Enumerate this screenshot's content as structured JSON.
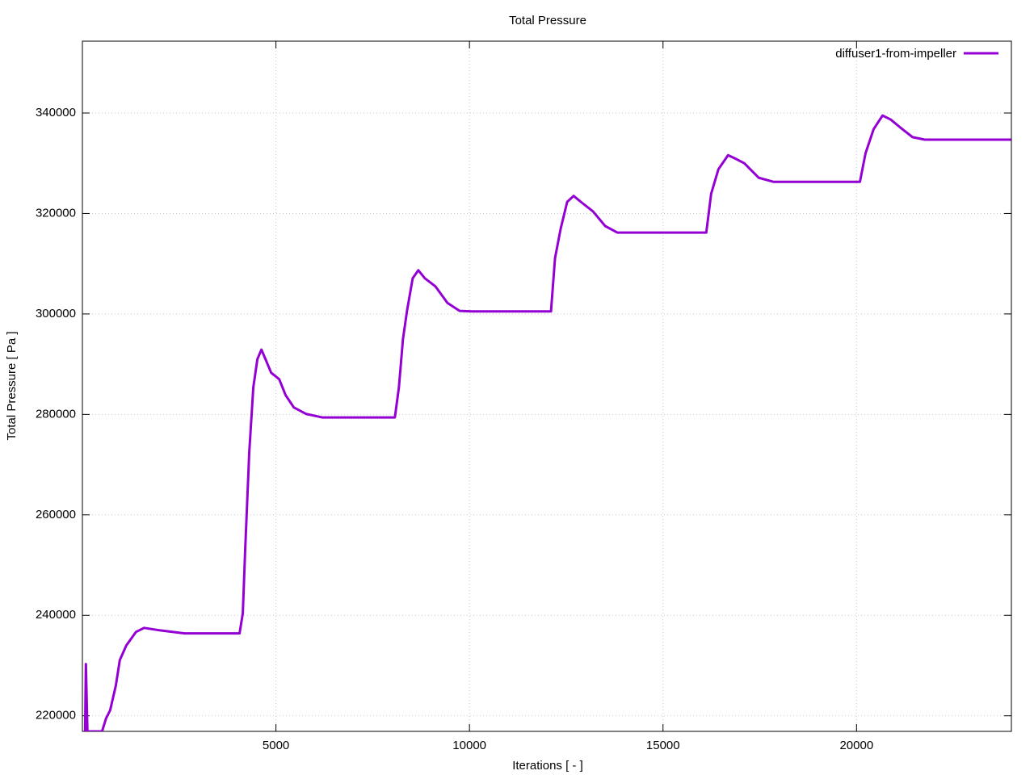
{
  "chart_data": {
    "type": "line",
    "title": "Total Pressure",
    "x_label": "Iterations [ - ]",
    "y_label": "Total Pressure [ Pa ]",
    "x": [
      70,
      90,
      130,
      508,
      612,
      717,
      863,
      967,
      1134,
      1385,
      1594,
      2012,
      2639,
      4060,
      4144,
      4207,
      4311,
      4416,
      4521,
      4625,
      4730,
      4876,
      5085,
      5252,
      5461,
      5775,
      6193,
      8073,
      8177,
      8282,
      8386,
      8533,
      8679,
      8846,
      9118,
      9431,
      9745,
      10058,
      12106,
      12210,
      12357,
      12524,
      12691,
      12879,
      13192,
      13506,
      13819,
      16118,
      16243,
      16431,
      16681,
      16849,
      17099,
      17475,
      17851,
      20087,
      20233,
      20442,
      20672,
      20881,
      21132,
      21445,
      21759,
      23993
    ],
    "series": [
      {
        "name": "diffuser1-from-impeller",
        "color": "#9400d3",
        "values": [
          216900,
          230300,
          216900,
          216900,
          219500,
          221100,
          226000,
          231100,
          234000,
          236700,
          237500,
          237000,
          236400,
          236400,
          240400,
          253300,
          272500,
          285400,
          291000,
          292900,
          291000,
          288300,
          287000,
          283800,
          281400,
          280100,
          279400,
          279400,
          285400,
          295000,
          300600,
          307100,
          308700,
          307100,
          305500,
          302200,
          300600,
          300500,
          300500,
          311100,
          317000,
          322300,
          323500,
          322300,
          320400,
          317500,
          316200,
          316200,
          323900,
          328800,
          331600,
          331000,
          330000,
          327100,
          326300,
          326300,
          332000,
          336800,
          339500,
          338700,
          337100,
          335200,
          334700,
          334700
        ]
      }
    ],
    "xlim": [
      0,
      24000
    ],
    "xticks": [
      5000,
      10000,
      15000,
      20000
    ],
    "ylim": [
      216900,
      354300
    ],
    "yticks": [
      220000,
      240000,
      260000,
      280000,
      300000,
      320000,
      340000
    ],
    "grid": true,
    "legend": "top-right"
  }
}
